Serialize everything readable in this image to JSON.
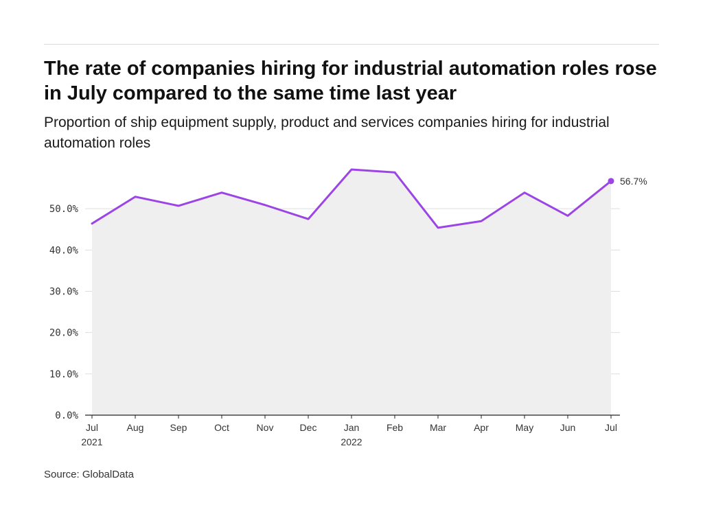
{
  "title": "The rate of companies hiring for industrial automation roles rose in July compared to the same time last year",
  "subtitle": "Proportion of ship equipment supply, product and services companies hiring for industrial automation roles",
  "source": "Source: GlobalData",
  "colors": {
    "line": "#9b45e4",
    "area": "#efefef",
    "grid": "#dddddd",
    "axis": "#222222"
  },
  "chart_data": {
    "type": "line",
    "title": "The rate of companies hiring for industrial automation roles rose in July compared to the same time last year",
    "subtitle": "Proportion of ship equipment supply, product and services companies hiring for industrial automation roles",
    "xlabel": "",
    "ylabel": "",
    "categories": [
      "Jul",
      "Aug",
      "Sep",
      "Oct",
      "Nov",
      "Dec",
      "Jan",
      "Feb",
      "Mar",
      "Apr",
      "May",
      "Jun",
      "Jul"
    ],
    "category_sublabels": [
      "2021",
      "",
      "",
      "",
      "",
      "",
      "2022",
      "",
      "",
      "",
      "",
      "",
      ""
    ],
    "values": [
      46.4,
      52.9,
      50.7,
      53.9,
      50.9,
      47.5,
      59.5,
      58.8,
      45.4,
      47.0,
      53.9,
      48.3,
      56.7
    ],
    "ylim": [
      0,
      60
    ],
    "yticks": [
      0,
      10,
      20,
      30,
      40,
      50
    ],
    "ytick_labels": [
      "0.0%",
      "10.0%",
      "20.0%",
      "30.0%",
      "40.0%",
      "50.0%"
    ],
    "grid": true,
    "area_fill": true,
    "end_label": "56.7%",
    "legend": "none"
  }
}
